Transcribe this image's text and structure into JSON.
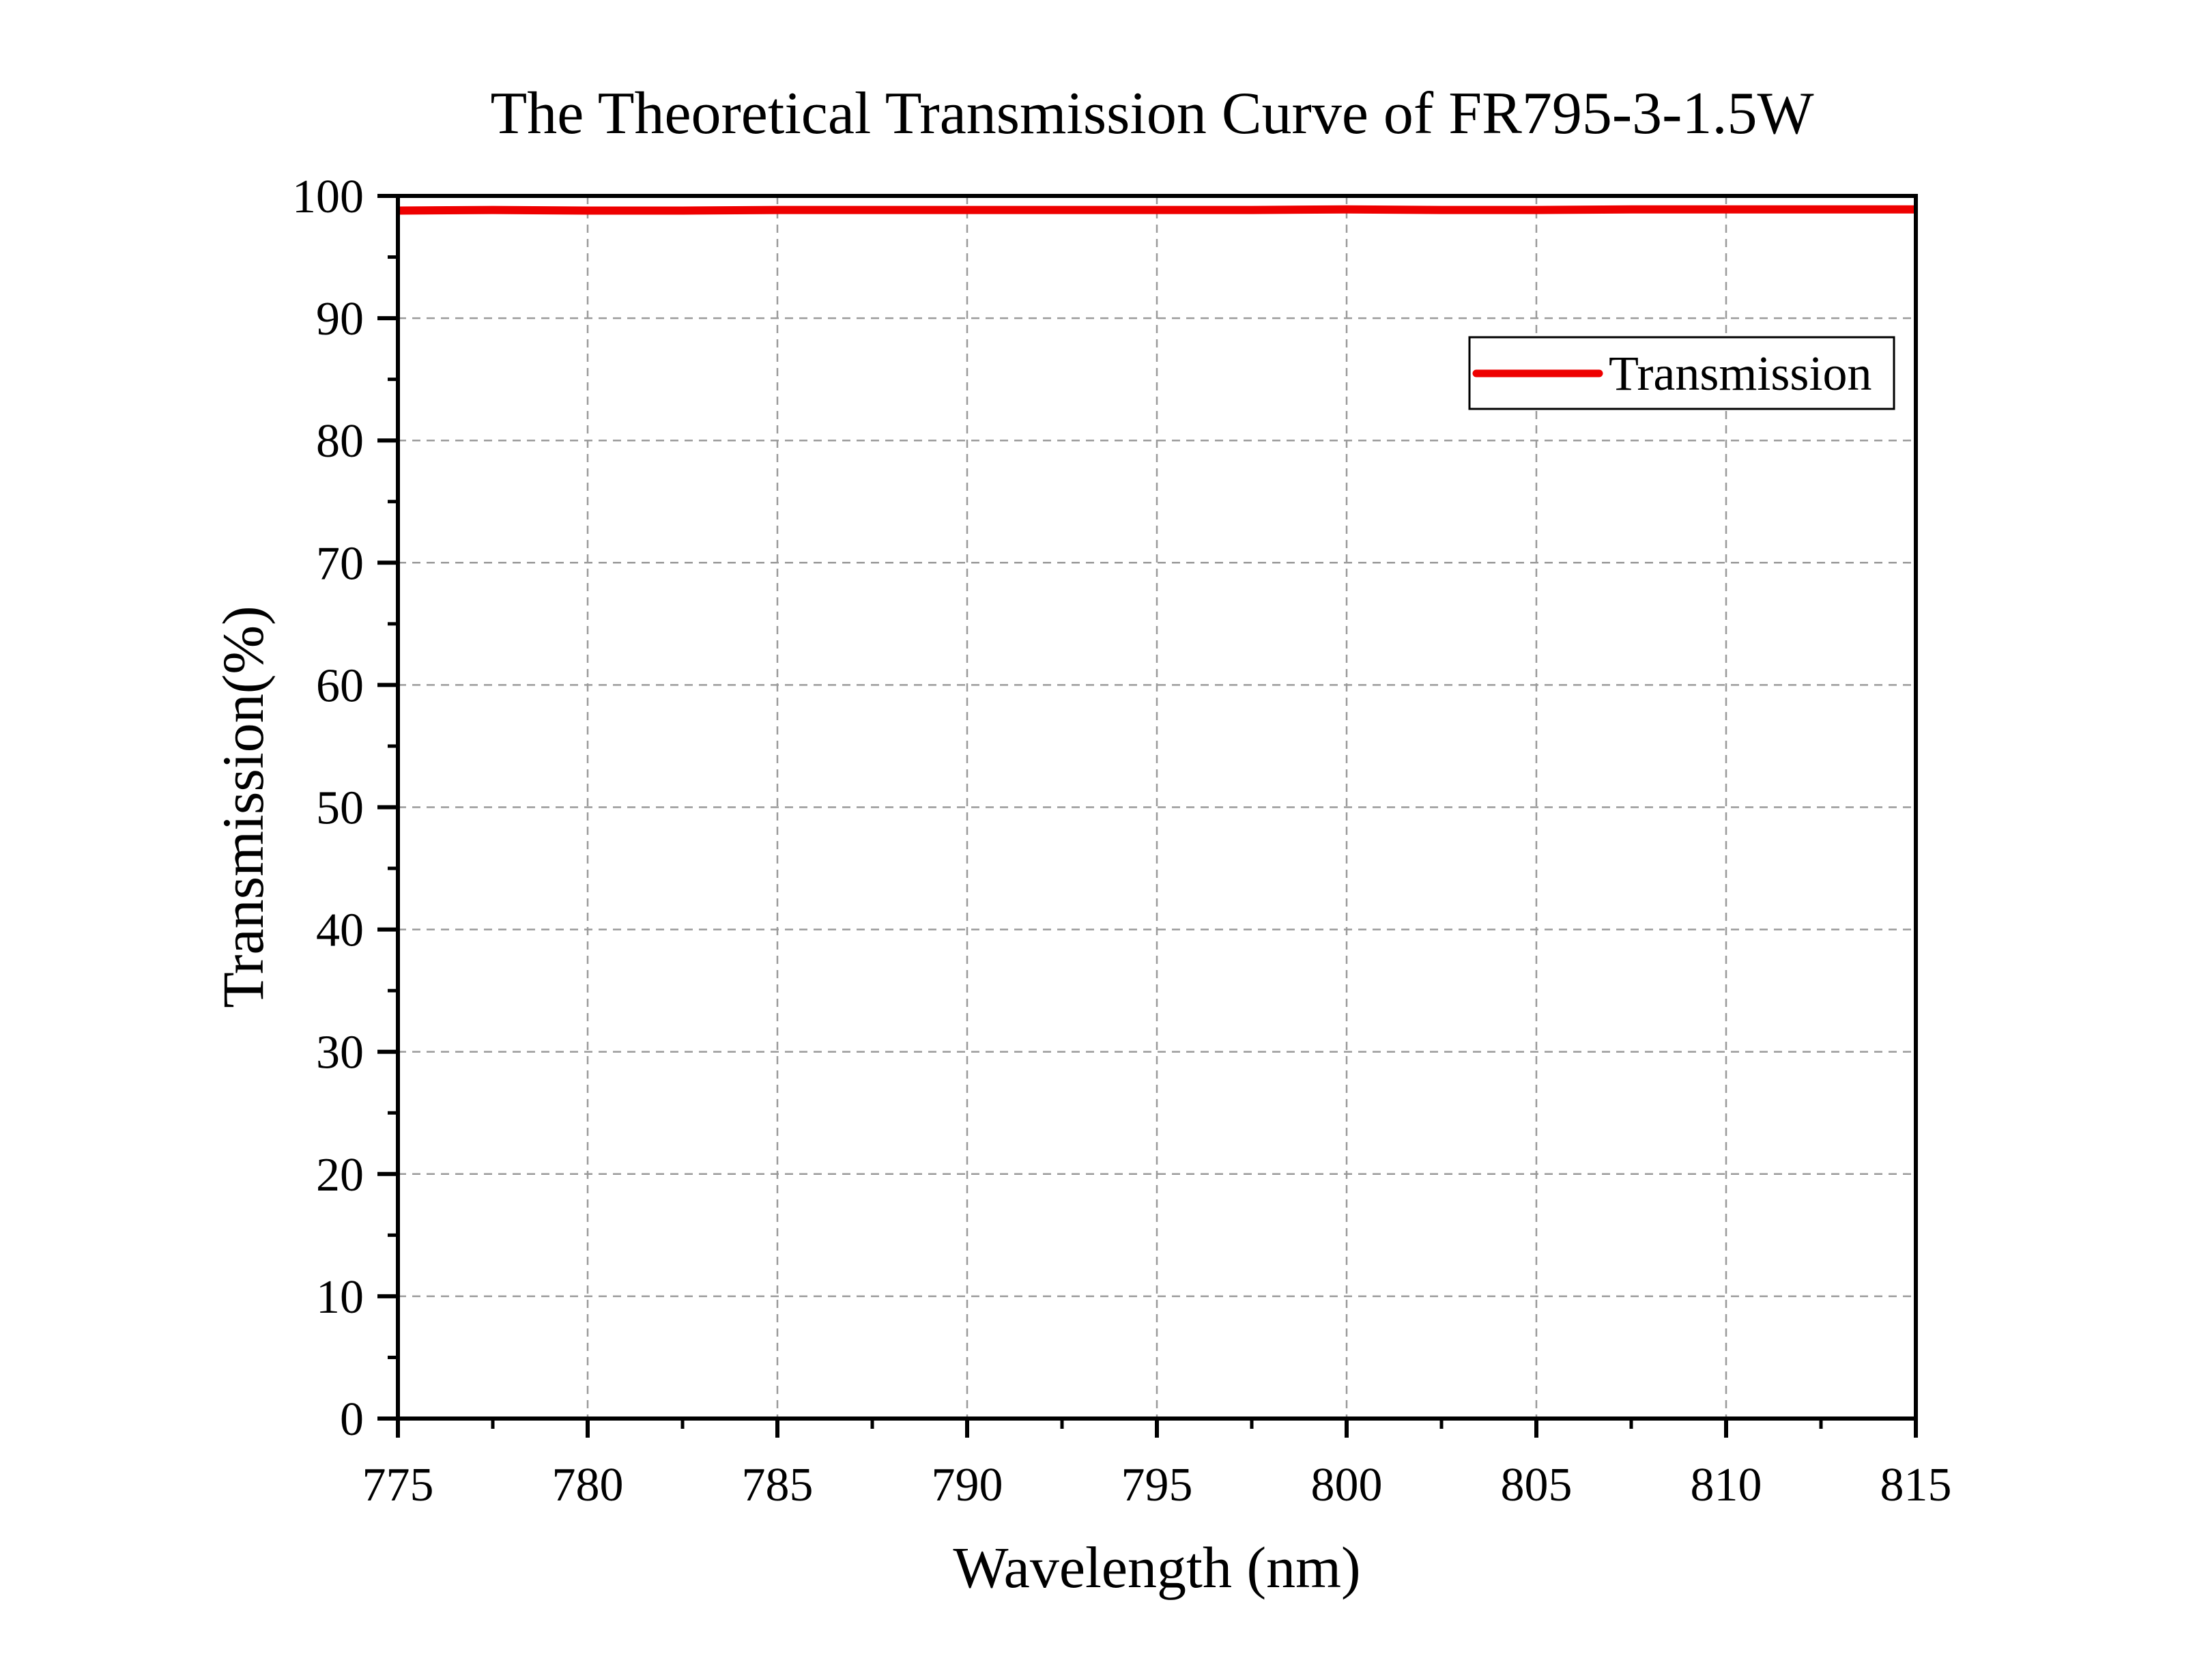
{
  "chart_data": {
    "type": "line",
    "title": "The Theoretical Transmission Curve of FR795-3-1.5W",
    "xlabel": "Wavelength (nm)",
    "ylabel": "Transmission(%)",
    "xlim": [
      775,
      815
    ],
    "ylim": [
      0,
      100
    ],
    "x_ticks": [
      775,
      780,
      785,
      790,
      795,
      800,
      805,
      810,
      815
    ],
    "y_ticks": [
      0,
      10,
      20,
      30,
      40,
      50,
      60,
      70,
      80,
      90,
      100
    ],
    "x_minor_step": 2.5,
    "y_minor_step": 5,
    "grid": true,
    "legend_position": "top-right",
    "series": [
      {
        "name": "Transmission",
        "color": "#ee0000",
        "x": [
          775,
          777.5,
          780,
          782.5,
          785,
          787.5,
          790,
          792.5,
          795,
          797.5,
          800,
          802.5,
          805,
          807.5,
          810,
          812.5,
          815
        ],
        "y": [
          98.8,
          98.85,
          98.8,
          98.8,
          98.85,
          98.85,
          98.85,
          98.85,
          98.85,
          98.85,
          98.9,
          98.85,
          98.85,
          98.9,
          98.9,
          98.9,
          98.9
        ]
      }
    ]
  }
}
